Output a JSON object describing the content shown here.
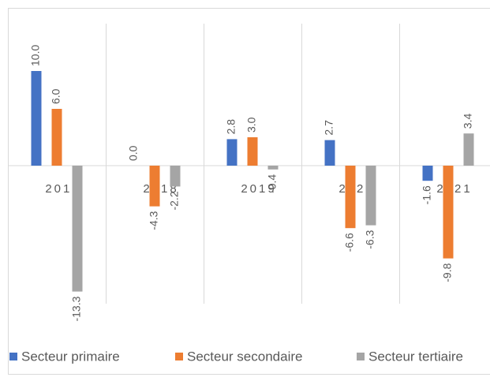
{
  "chart_data": {
    "type": "bar",
    "categories": [
      "2017",
      "2018",
      "2019",
      "2020",
      "2021"
    ],
    "series": [
      {
        "name": "Secteur primaire",
        "color": "#4472c4",
        "values": [
          10.0,
          0.0,
          2.8,
          2.7,
          -1.6
        ],
        "value_labels": [
          "10.0",
          "0.0",
          "2.8",
          "2.7",
          "-1.6"
        ]
      },
      {
        "name": "Secteur secondaire",
        "color": "#ed7d31",
        "values": [
          6.0,
          -4.3,
          3.0,
          -6.6,
          -9.8
        ],
        "value_labels": [
          "6.0",
          "-4.3",
          "3.0",
          "-6.6",
          "-9.8"
        ]
      },
      {
        "name": "Secteur tertiaire",
        "color": "#a5a5a5",
        "values": [
          -13.3,
          -2.2,
          -0.4,
          -6.3,
          3.4
        ],
        "value_labels": [
          "-13.3",
          "-2.2",
          "-0.4",
          "-6.3",
          "3.4"
        ]
      }
    ],
    "ylim": [
      -15,
      15
    ],
    "legend": "bottom"
  }
}
